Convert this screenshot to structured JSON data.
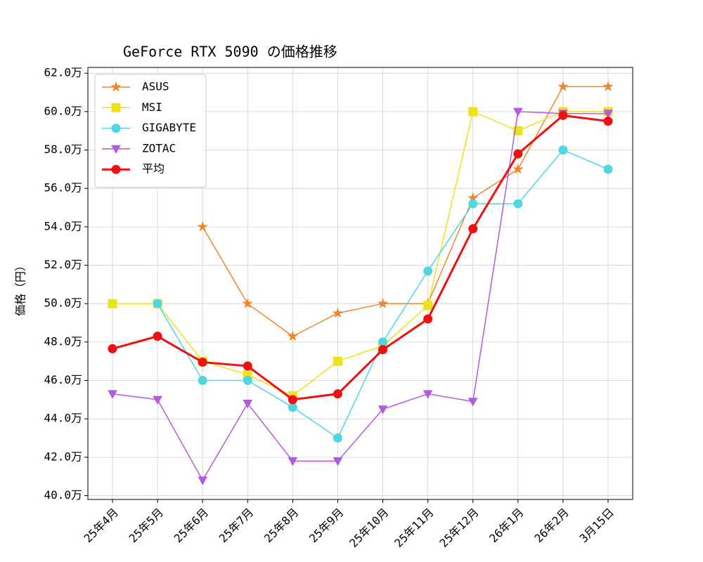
{
  "chart_data": {
    "type": "line",
    "title": "GeForce RTX 5090 の価格推移",
    "y_label": "価格（円）",
    "categories": [
      "25年4月",
      "25年5月",
      "25年6月",
      "25年7月",
      "25年8月",
      "25年9月",
      "25年10月",
      "25年11月",
      "25年12月",
      "26年1月",
      "26年2月",
      "3月15日"
    ],
    "series": [
      {
        "name": "ASUS",
        "color": "#f0862a",
        "marker": "star",
        "linewidth": 1.5,
        "values": [
          null,
          null,
          54.0,
          50.0,
          48.3,
          49.5,
          50.0,
          50.0,
          55.5,
          57.0,
          61.3,
          61.3
        ]
      },
      {
        "name": "MSI",
        "color": "#ece21e",
        "marker": "square",
        "linewidth": 1.5,
        "values": [
          50.0,
          50.0,
          47.0,
          46.3,
          45.2,
          47.0,
          47.8,
          49.9,
          60.0,
          59.0,
          60.0,
          60.0
        ]
      },
      {
        "name": "GIGABYTE",
        "color": "#4fd6e2",
        "marker": "circle",
        "linewidth": 1.5,
        "values": [
          null,
          50.0,
          46.0,
          46.0,
          44.6,
          43.0,
          48.0,
          51.7,
          55.2,
          55.2,
          58.0,
          57.0
        ]
      },
      {
        "name": "ZOTAC",
        "color": "#b35ae2",
        "marker": "triangle-down",
        "linewidth": 1.5,
        "values": [
          45.3,
          45.0,
          40.8,
          44.8,
          41.8,
          41.8,
          44.5,
          45.3,
          44.9,
          60.0,
          59.9,
          59.9
        ]
      },
      {
        "name": "平均",
        "color": "#ee1111",
        "marker": "circle",
        "linewidth": 3,
        "values": [
          47.65,
          48.3,
          46.95,
          46.75,
          45.0,
          45.3,
          47.6,
          49.2,
          53.9,
          57.8,
          59.8,
          59.5
        ]
      }
    ],
    "ylim": [
      39.8,
      62.3
    ],
    "yticks": [
      {
        "value": 40,
        "label": "40.0万"
      },
      {
        "value": 42,
        "label": "42.0万"
      },
      {
        "value": 44,
        "label": "44.0万"
      },
      {
        "value": 46,
        "label": "46.0万"
      },
      {
        "value": 48,
        "label": "48.0万"
      },
      {
        "value": 50,
        "label": "50.0万"
      },
      {
        "value": 52,
        "label": "52.0万"
      },
      {
        "value": 54,
        "label": "54.0万"
      },
      {
        "value": 56,
        "label": "56.0万"
      },
      {
        "value": 58,
        "label": "58.0万"
      },
      {
        "value": 60,
        "label": "60.0万"
      },
      {
        "value": 62,
        "label": "62.0万"
      }
    ],
    "grid": true,
    "legend": "upper left"
  }
}
